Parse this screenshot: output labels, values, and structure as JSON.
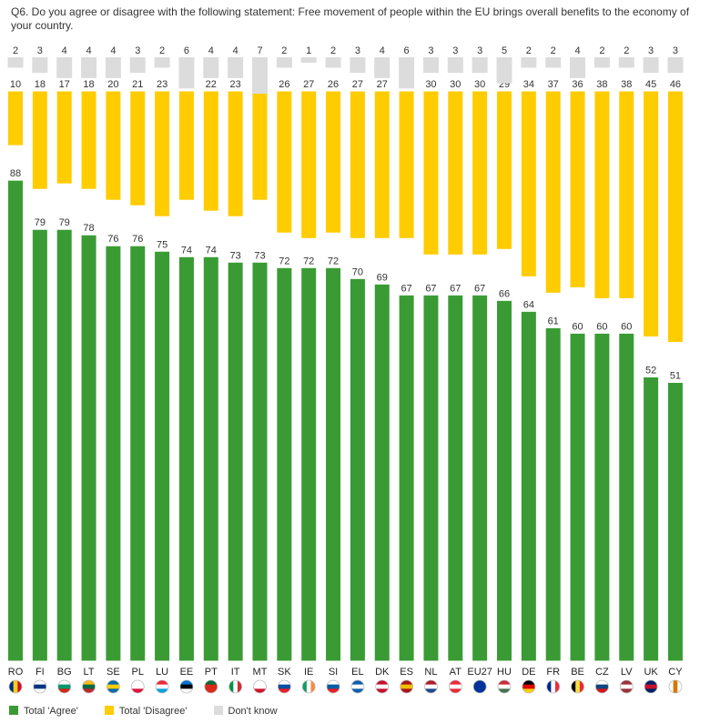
{
  "title": "Q6. Do you agree or disagree with the following statement: Free movement of people within the EU brings overall benefits to the economy of your country.",
  "colors": {
    "agree": "#3a9b35",
    "disagree": "#ffcc00",
    "dont_know": "#dcdcdc"
  },
  "legend": {
    "agree": "Total 'Agree'",
    "disagree": "Total 'Disagree'",
    "dont_know": "Don't know"
  },
  "chart_data": {
    "type": "bar",
    "stacked": true,
    "title": "Q6. Do you agree or disagree with the following statement: Free movement of people within the EU brings overall benefits to the economy of your country.",
    "categories": [
      "RO",
      "FI",
      "BG",
      "LT",
      "SE",
      "PL",
      "LU",
      "EE",
      "PT",
      "IT",
      "MT",
      "SK",
      "IE",
      "SI",
      "EL",
      "DK",
      "ES",
      "NL",
      "AT",
      "EU27",
      "HU",
      "DE",
      "FR",
      "BE",
      "CZ",
      "LV",
      "UK",
      "CY"
    ],
    "series": [
      {
        "name": "Total 'Agree'",
        "values": [
          88,
          79,
          79,
          78,
          76,
          76,
          75,
          74,
          74,
          73,
          73,
          72,
          72,
          72,
          70,
          69,
          67,
          67,
          67,
          67,
          66,
          64,
          61,
          60,
          60,
          60,
          52,
          51
        ]
      },
      {
        "name": "Total 'Disagree'",
        "values": [
          10,
          18,
          17,
          18,
          20,
          21,
          23,
          20,
          22,
          23,
          20,
          26,
          27,
          26,
          27,
          27,
          27,
          30,
          30,
          30,
          29,
          34,
          37,
          36,
          38,
          38,
          45,
          46
        ]
      },
      {
        "name": "Don't know",
        "values": [
          2,
          3,
          4,
          4,
          4,
          3,
          2,
          6,
          4,
          4,
          7,
          2,
          1,
          2,
          3,
          4,
          6,
          3,
          3,
          3,
          5,
          2,
          2,
          4,
          2,
          2,
          3,
          3
        ]
      }
    ],
    "ylim": [
      0,
      100
    ],
    "xlabel": "",
    "ylabel": ""
  }
}
